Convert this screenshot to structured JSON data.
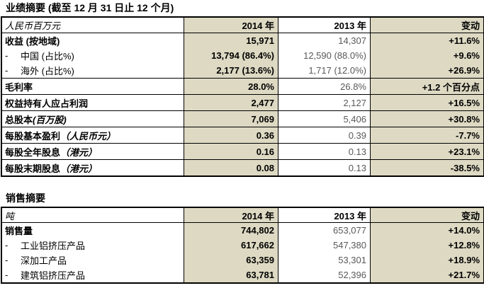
{
  "colors": {
    "tan": "#ddd9c3",
    "muted": "#595959",
    "border": "#000000"
  },
  "performance": {
    "title": "业绩摘要 (截至 12 月 31 日止 12 个月)",
    "unit_label": "人民币百万元",
    "col_2014": "2014 年",
    "col_2013": "2013 年",
    "col_change": "变动",
    "rows": [
      {
        "label": "收益 (按地域)",
        "v2014": "15,971",
        "v2013": "14,307",
        "change": "+11.6%"
      },
      {
        "dash": "-",
        "label": "中国 (占比%)",
        "v2014": "13,794 (86.4%)",
        "v2013": "12,590 (88.0%)",
        "change": "+9.6%"
      },
      {
        "dash": "-",
        "label": "海外 (占比%)",
        "v2014": "2,177 (13.6%)",
        "v2013": "1,717 (12.0%)",
        "change": "+26.9%"
      },
      {
        "label": "毛利率",
        "v2014": "28.0%",
        "v2013": "26.8%",
        "change": "+1.2 个百分点"
      },
      {
        "label": "权益持有人应占利润",
        "v2014": "2,477",
        "v2013": "2,127",
        "change": "+16.5%"
      },
      {
        "label": "总股本",
        "note": "(百万股)",
        "v2014": "7,069",
        "v2013": "5,406",
        "change": "+30.8%"
      },
      {
        "label": "每股基本盈利",
        "note": "（人民币元）",
        "v2014": "0.36",
        "v2013": "0.39",
        "change": "-7.7%"
      },
      {
        "label": "每股全年股息",
        "note": "（港元）",
        "v2014": "0.16",
        "v2013": "0.13",
        "change": "+23.1%"
      },
      {
        "label": "每股末期股息",
        "note": "（港元）",
        "v2014": "0.08",
        "v2013": "0.13",
        "change": "-38.5%"
      }
    ]
  },
  "sales": {
    "title": "销售摘要",
    "unit_label": "吨",
    "col_2014": "2014 年",
    "col_2013": "2013 年",
    "col_change": "变动",
    "rows": [
      {
        "label": "销售量",
        "v2014": "744,802",
        "v2013": "653,077",
        "change": "+14.0%"
      },
      {
        "dash": "-",
        "label": "工业铝挤压产品",
        "v2014": "617,662",
        "v2013": "547,380",
        "change": "+12.8%"
      },
      {
        "dash": "-",
        "label": "深加工产品",
        "v2014": "63,359",
        "v2013": "53,301",
        "change": "+18.9%"
      },
      {
        "dash": "-",
        "label": "建筑铝挤压产品",
        "v2014": "63,781",
        "v2013": "52,396",
        "change": "+21.7%"
      }
    ]
  }
}
